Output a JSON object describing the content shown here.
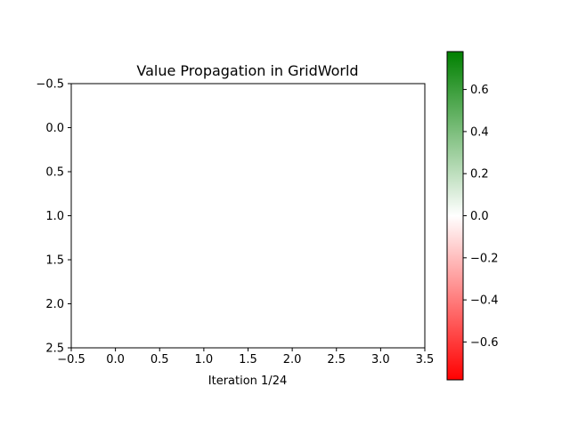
{
  "chart_data": {
    "type": "heatmap",
    "title": "Value Propagation in GridWorld",
    "xlabel": "Iteration 1/24",
    "ylabel": "",
    "xlim": [
      -0.5,
      3.5
    ],
    "ylim": [
      2.5,
      -0.5
    ],
    "y_inverted": true,
    "grid": false,
    "rows": 3,
    "cols": 4,
    "values": [
      [
        0,
        0,
        0,
        0
      ],
      [
        0,
        0,
        0,
        0
      ],
      [
        0,
        0,
        0,
        0
      ]
    ],
    "x_ticks": [
      "−0.5",
      "0.0",
      "0.5",
      "1.0",
      "1.5",
      "2.0",
      "2.5",
      "3.0",
      "3.5"
    ],
    "y_ticks": [
      "−0.5",
      "0.0",
      "0.5",
      "1.0",
      "1.5",
      "2.0",
      "2.5"
    ],
    "colorbar": {
      "vmin": -0.78,
      "vmax": 0.78,
      "colors": {
        "low": "#ff0000",
        "mid": "#ffffff",
        "high": "#008000"
      },
      "ticks": [
        {
          "value": 0.6,
          "label": "0.6"
        },
        {
          "value": 0.4,
          "label": "0.4"
        },
        {
          "value": 0.2,
          "label": "0.2"
        },
        {
          "value": 0.0,
          "label": "0.0"
        },
        {
          "value": -0.2,
          "label": "−0.2"
        },
        {
          "value": -0.4,
          "label": "−0.4"
        },
        {
          "value": -0.6,
          "label": "−0.6"
        }
      ]
    }
  }
}
